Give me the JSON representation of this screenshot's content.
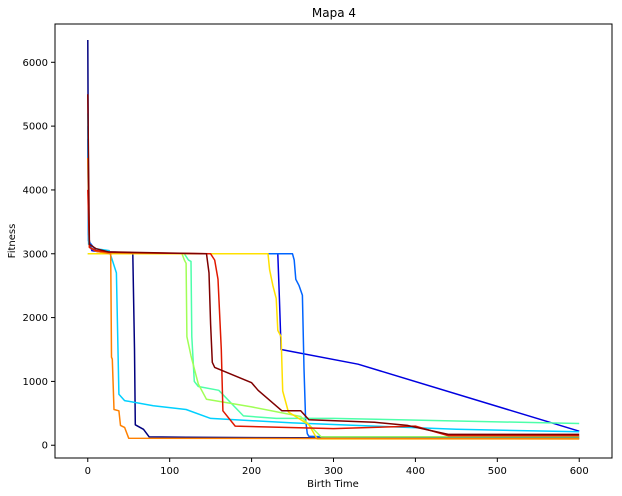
{
  "chart_data": {
    "type": "line",
    "title": "Mapa 4",
    "xlabel": "Birth Time",
    "ylabel": "Fitness",
    "xlim": [
      -40,
      640
    ],
    "ylim": [
      -200,
      6600
    ],
    "xticks": [
      0,
      100,
      200,
      300,
      400,
      500,
      600
    ],
    "yticks": [
      0,
      1000,
      2000,
      3000,
      4000,
      5000,
      6000
    ],
    "grid": false,
    "legend": "none",
    "series": [
      {
        "color": "#00007f",
        "points": [
          [
            0,
            6350
          ],
          [
            1,
            3300
          ],
          [
            3,
            3100
          ],
          [
            8,
            3050
          ],
          [
            20,
            3030
          ],
          [
            52,
            3020
          ],
          [
            55,
            3000
          ],
          [
            57,
            1500
          ],
          [
            58,
            320
          ],
          [
            68,
            250
          ],
          [
            75,
            130
          ],
          [
            120,
            125
          ],
          [
            300,
            115
          ],
          [
            600,
            110
          ]
        ]
      },
      {
        "color": "#0000e0",
        "points": [
          [
            0,
            4800
          ],
          [
            1,
            3200
          ],
          [
            5,
            3050
          ],
          [
            20,
            3020
          ],
          [
            50,
            3000
          ],
          [
            232,
            3000
          ],
          [
            234,
            2300
          ],
          [
            236,
            1500
          ],
          [
            330,
            1270
          ],
          [
            600,
            220
          ]
        ]
      },
      {
        "color": "#0064ff",
        "points": [
          [
            0,
            5000
          ],
          [
            1,
            3200
          ],
          [
            10,
            3050
          ],
          [
            30,
            3000
          ],
          [
            250,
            3000
          ],
          [
            252,
            2900
          ],
          [
            254,
            2600
          ],
          [
            258,
            2500
          ],
          [
            262,
            2350
          ],
          [
            264,
            1200
          ],
          [
            266,
            400
          ],
          [
            268,
            180
          ],
          [
            270,
            140
          ],
          [
            290,
            130
          ],
          [
            600,
            130
          ]
        ]
      },
      {
        "color": "#00d0ff",
        "points": [
          [
            0,
            5200
          ],
          [
            1,
            3150
          ],
          [
            10,
            3080
          ],
          [
            26,
            3050
          ],
          [
            30,
            2900
          ],
          [
            35,
            2700
          ],
          [
            38,
            800
          ],
          [
            45,
            700
          ],
          [
            80,
            620
          ],
          [
            120,
            560
          ],
          [
            150,
            420
          ],
          [
            250,
            350
          ],
          [
            350,
            300
          ],
          [
            450,
            250
          ],
          [
            600,
            210
          ]
        ]
      },
      {
        "color": "#4dffaa",
        "points": [
          [
            0,
            3000
          ],
          [
            15,
            3000
          ],
          [
            118,
            3000
          ],
          [
            123,
            2900
          ],
          [
            126,
            2880
          ],
          [
            127,
            1700
          ],
          [
            130,
            1000
          ],
          [
            135,
            920
          ],
          [
            160,
            860
          ],
          [
            190,
            460
          ],
          [
            230,
            420
          ],
          [
            300,
            420
          ],
          [
            450,
            380
          ],
          [
            600,
            340
          ]
        ]
      },
      {
        "color": "#a0ff56",
        "points": [
          [
            0,
            3000
          ],
          [
            15,
            3000
          ],
          [
            115,
            3000
          ],
          [
            118,
            2900
          ],
          [
            120,
            2850
          ],
          [
            121,
            1700
          ],
          [
            126,
            1400
          ],
          [
            135,
            960
          ],
          [
            145,
            720
          ],
          [
            200,
            600
          ],
          [
            260,
            450
          ],
          [
            285,
            130
          ],
          [
            600,
            130
          ]
        ]
      },
      {
        "color": "#ffe000",
        "points": [
          [
            0,
            3000
          ],
          [
            15,
            3000
          ],
          [
            220,
            3000
          ],
          [
            222,
            2750
          ],
          [
            226,
            2500
          ],
          [
            230,
            2300
          ],
          [
            232,
            1800
          ],
          [
            236,
            1700
          ],
          [
            238,
            850
          ],
          [
            245,
            520
          ],
          [
            270,
            320
          ],
          [
            280,
            100
          ],
          [
            600,
            100
          ]
        ]
      },
      {
        "color": "#ff8000",
        "points": [
          [
            0,
            4500
          ],
          [
            2,
            3100
          ],
          [
            10,
            3040
          ],
          [
            28,
            3000
          ],
          [
            29,
            1380
          ],
          [
            30,
            1350
          ],
          [
            32,
            560
          ],
          [
            38,
            540
          ],
          [
            40,
            310
          ],
          [
            45,
            280
          ],
          [
            50,
            110
          ],
          [
            600,
            100
          ]
        ]
      },
      {
        "color": "#e01800",
        "points": [
          [
            0,
            4000
          ],
          [
            2,
            3100
          ],
          [
            10,
            3050
          ],
          [
            30,
            3020
          ],
          [
            150,
            3000
          ],
          [
            155,
            2900
          ],
          [
            159,
            2600
          ],
          [
            163,
            1500
          ],
          [
            165,
            540
          ],
          [
            180,
            300
          ],
          [
            300,
            260
          ],
          [
            400,
            300
          ],
          [
            440,
            150
          ],
          [
            600,
            150
          ]
        ]
      },
      {
        "color": "#7f0000",
        "points": [
          [
            0,
            5500
          ],
          [
            2,
            3150
          ],
          [
            10,
            3080
          ],
          [
            25,
            3030
          ],
          [
            145,
            3000
          ],
          [
            148,
            2700
          ],
          [
            150,
            1900
          ],
          [
            152,
            1300
          ],
          [
            155,
            1220
          ],
          [
            200,
            980
          ],
          [
            208,
            860
          ],
          [
            237,
            540
          ],
          [
            260,
            540
          ],
          [
            270,
            400
          ],
          [
            350,
            360
          ],
          [
            390,
            310
          ],
          [
            440,
            170
          ],
          [
            600,
            170
          ]
        ]
      }
    ]
  }
}
